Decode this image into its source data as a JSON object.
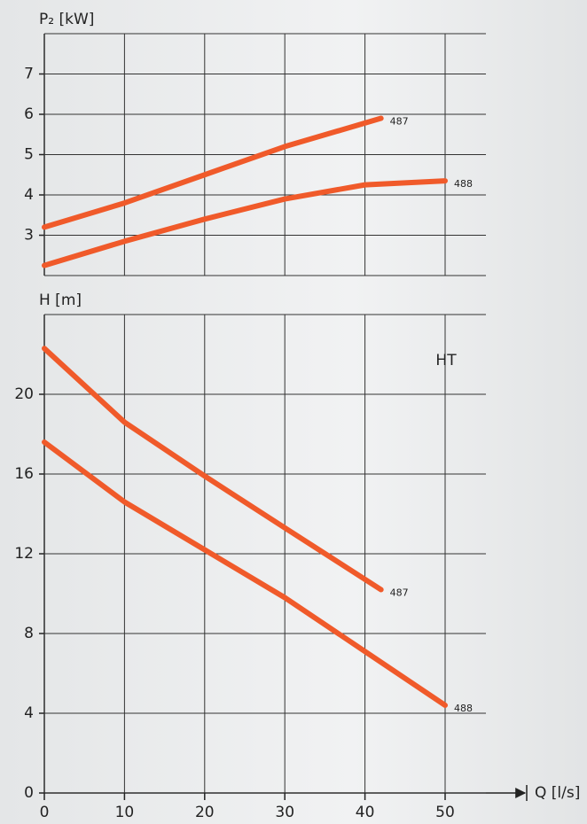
{
  "chart_data": [
    {
      "type": "line",
      "ylabel": "P₂ [kW]",
      "xlim": [
        0,
        50
      ],
      "xticks": [
        0,
        10,
        20,
        30,
        40,
        50
      ],
      "ylim": [
        2,
        8
      ],
      "yticks": [
        3,
        4,
        5,
        6,
        7
      ],
      "grid": true,
      "series": [
        {
          "name": "487",
          "color": "#f05a2a",
          "x": [
            0,
            10,
            20,
            30,
            42
          ],
          "values": [
            3.2,
            3.8,
            4.5,
            5.2,
            5.9
          ]
        },
        {
          "name": "488",
          "color": "#f05a2a",
          "x": [
            0,
            10,
            20,
            30,
            40,
            50
          ],
          "values": [
            2.25,
            2.85,
            3.4,
            3.9,
            4.25,
            4.35
          ]
        }
      ]
    },
    {
      "type": "line",
      "ylabel": "H [m]",
      "xlabel": "Q [l/s]",
      "annotation": "HT",
      "xlim": [
        0,
        50
      ],
      "xticks": [
        0,
        10,
        20,
        30,
        40,
        50
      ],
      "ylim": [
        0,
        24
      ],
      "yticks": [
        0,
        4,
        8,
        12,
        16,
        20
      ],
      "grid": true,
      "series": [
        {
          "name": "487",
          "color": "#f05a2a",
          "x": [
            0,
            10,
            20,
            30,
            42
          ],
          "values": [
            22.3,
            18.6,
            15.9,
            13.3,
            10.2
          ]
        },
        {
          "name": "488",
          "color": "#f05a2a",
          "x": [
            0,
            10,
            20,
            30,
            40,
            50
          ],
          "values": [
            17.6,
            14.6,
            12.2,
            9.8,
            7.1,
            4.4
          ]
        }
      ]
    }
  ]
}
